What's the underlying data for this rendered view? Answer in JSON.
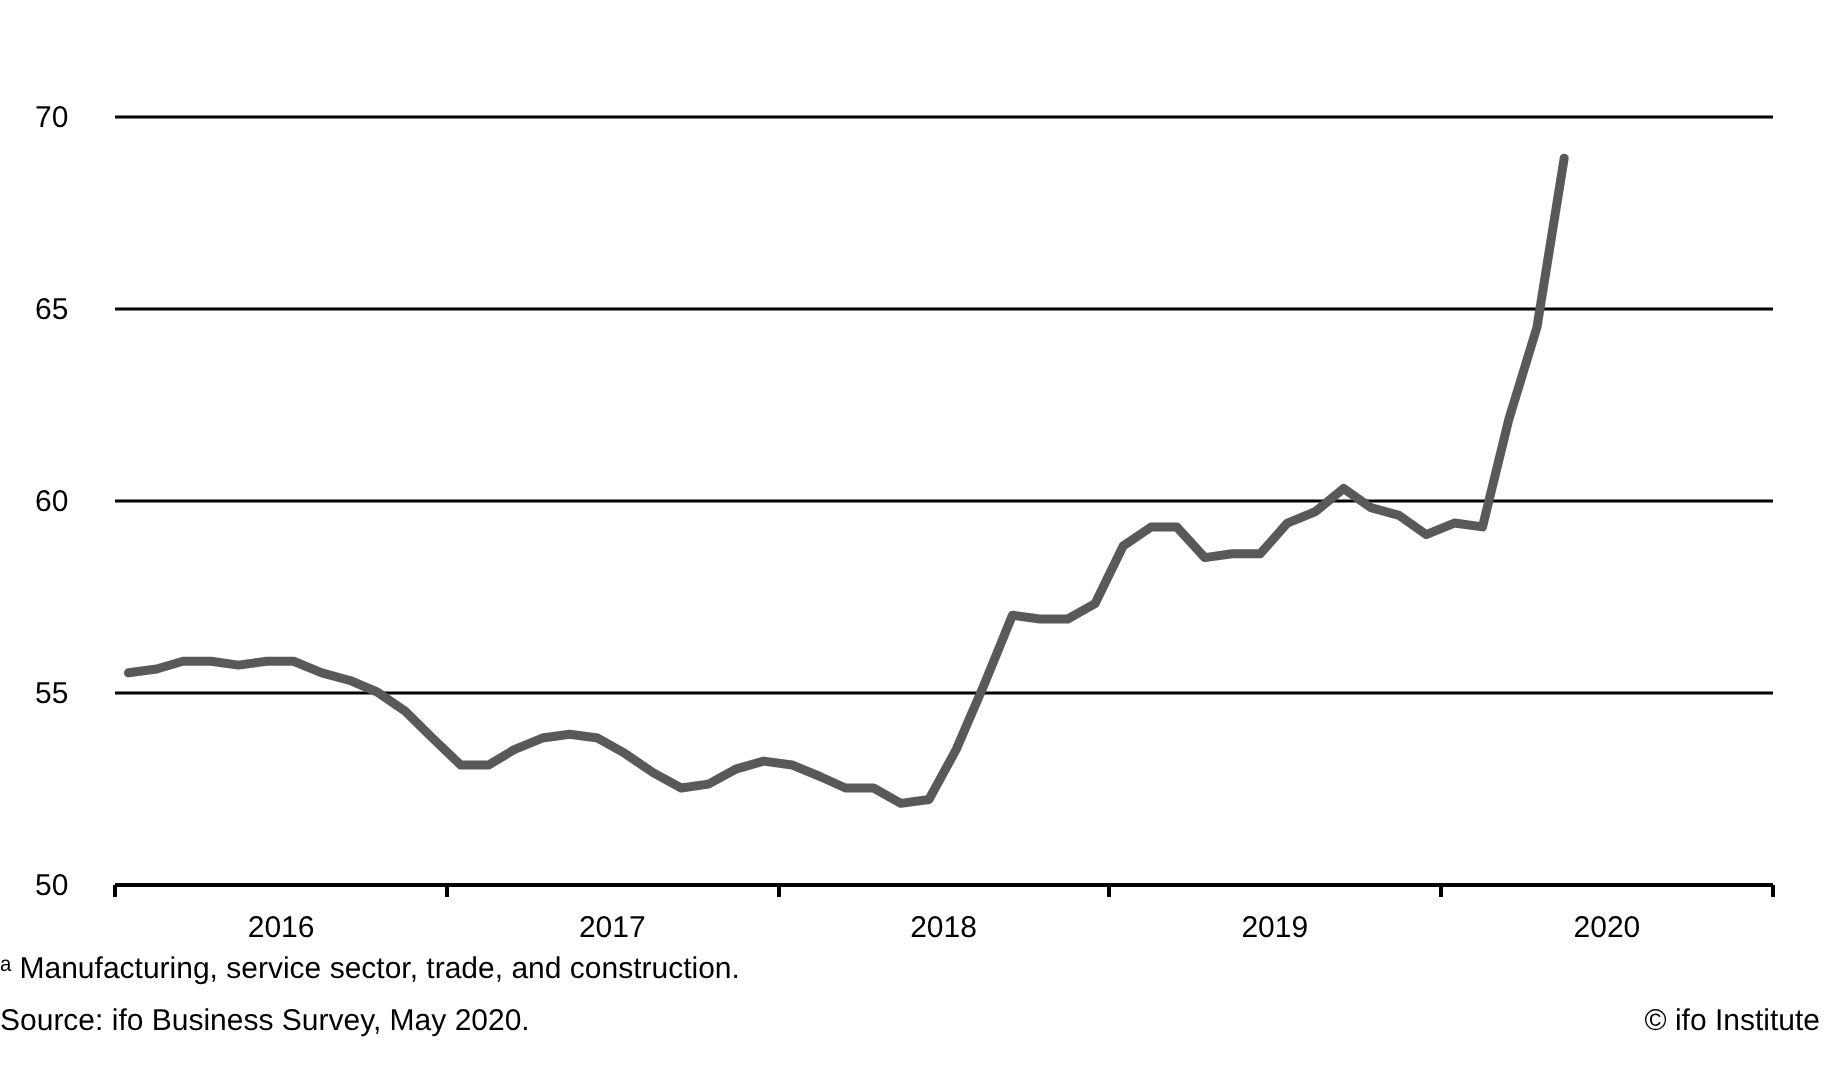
{
  "chart_data": {
    "type": "line",
    "x": [
      "2016-01",
      "2016-02",
      "2016-03",
      "2016-04",
      "2016-05",
      "2016-06",
      "2016-07",
      "2016-08",
      "2016-09",
      "2016-10",
      "2016-11",
      "2016-12",
      "2017-01",
      "2017-02",
      "2017-03",
      "2017-04",
      "2017-05",
      "2017-06",
      "2017-07",
      "2017-08",
      "2017-09",
      "2017-10",
      "2017-11",
      "2017-12",
      "2018-01",
      "2018-02",
      "2018-03",
      "2018-04",
      "2018-05",
      "2018-06",
      "2018-07",
      "2018-08",
      "2018-09",
      "2018-10",
      "2018-11",
      "2018-12",
      "2019-01",
      "2019-02",
      "2019-03",
      "2019-04",
      "2019-05",
      "2019-06",
      "2019-07",
      "2019-08",
      "2019-09",
      "2019-10",
      "2019-11",
      "2019-12",
      "2020-01",
      "2020-02",
      "2020-03",
      "2020-04",
      "2020-05"
    ],
    "series": [
      {
        "color": "#595959",
        "values": [
          55.5,
          55.6,
          55.8,
          55.8,
          55.7,
          55.8,
          55.8,
          55.5,
          55.3,
          55.0,
          54.5,
          53.8,
          53.1,
          53.1,
          53.5,
          53.8,
          53.9,
          53.8,
          53.4,
          52.9,
          52.5,
          52.6,
          53.0,
          53.2,
          53.1,
          52.8,
          52.5,
          52.5,
          52.1,
          52.2,
          53.5,
          55.2,
          57.0,
          56.9,
          56.9,
          57.3,
          58.8,
          59.3,
          59.3,
          58.5,
          58.6,
          58.6,
          59.4,
          59.7,
          60.3,
          59.8,
          59.6,
          59.1,
          59.4,
          59.3,
          62.1,
          64.5,
          68.9
        ]
      }
    ],
    "xlim": [
      "2015-12-16",
      "2020-12-16"
    ],
    "xticks": [
      {
        "value": "2015-12-16",
        "label": null
      },
      {
        "value": "2016-06-16",
        "label": "2016"
      },
      {
        "value": "2016-12-16",
        "label": null
      },
      {
        "value": "2017-06-16",
        "label": "2017"
      },
      {
        "value": "2017-12-16",
        "label": null
      },
      {
        "value": "2018-06-16",
        "label": "2018"
      },
      {
        "value": "2018-12-16",
        "label": null
      },
      {
        "value": "2019-06-16",
        "label": "2019"
      },
      {
        "value": "2019-12-16",
        "label": null
      },
      {
        "value": "2020-06-16",
        "label": "2020"
      },
      {
        "value": "2020-12-16",
        "label": null
      }
    ],
    "ylim": [
      50,
      70
    ],
    "yticks": [
      50,
      55,
      60,
      65,
      70
    ],
    "grid": "y",
    "marker": "none",
    "line_style": "solid",
    "annotations": [
      "ᵃ Manufacturing, service sector, trade, and construction.",
      "Source: ifo Business Survey, May 2020.",
      "© ifo Institute"
    ]
  }
}
